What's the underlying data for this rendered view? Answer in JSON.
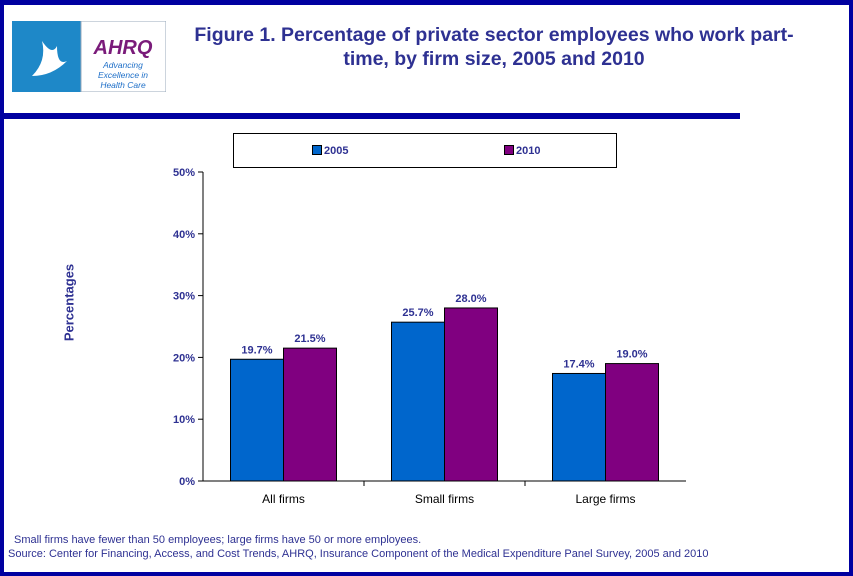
{
  "header": {
    "title": "Figure 1. Percentage of private sector employees who work part-time, by firm size, 2005 and 2010",
    "logo_text": [
      "AHRQ",
      "Advancing Excellence in Health Care"
    ]
  },
  "colors": {
    "border": "#0000a0",
    "text": "#2e3192",
    "series_2005": "#0066cc",
    "series_2010": "#800080"
  },
  "chart_data": {
    "type": "bar",
    "title": "Figure 1. Percentage of private sector employees who work part-time, by firm size, 2005 and 2010",
    "ylabel": "Percentages",
    "xlabel": "",
    "categories": [
      "All firms",
      "Small firms",
      "Large firms"
    ],
    "series": [
      {
        "name": "2005",
        "values": [
          19.7,
          25.7,
          17.4
        ],
        "labels": [
          "19.7%",
          "25.7%",
          "17.4%"
        ]
      },
      {
        "name": "2010",
        "values": [
          21.5,
          28.0,
          19.0
        ],
        "labels": [
          "21.5%",
          "28.0%",
          "19.0%"
        ]
      }
    ],
    "ylim": [
      0,
      50
    ],
    "yticks": [
      "0%",
      "10%",
      "20%",
      "30%",
      "40%",
      "50%"
    ],
    "grid": false,
    "legend": "top"
  },
  "notes": {
    "footnote": "Small firms have fewer than 50 employees; large firms have 50 or more employees.",
    "source": "Source: Center for Financing, Access, and Cost Trends, AHRQ, Insurance Component of the Medical Expenditure Panel Survey,  2005 and 2010"
  }
}
